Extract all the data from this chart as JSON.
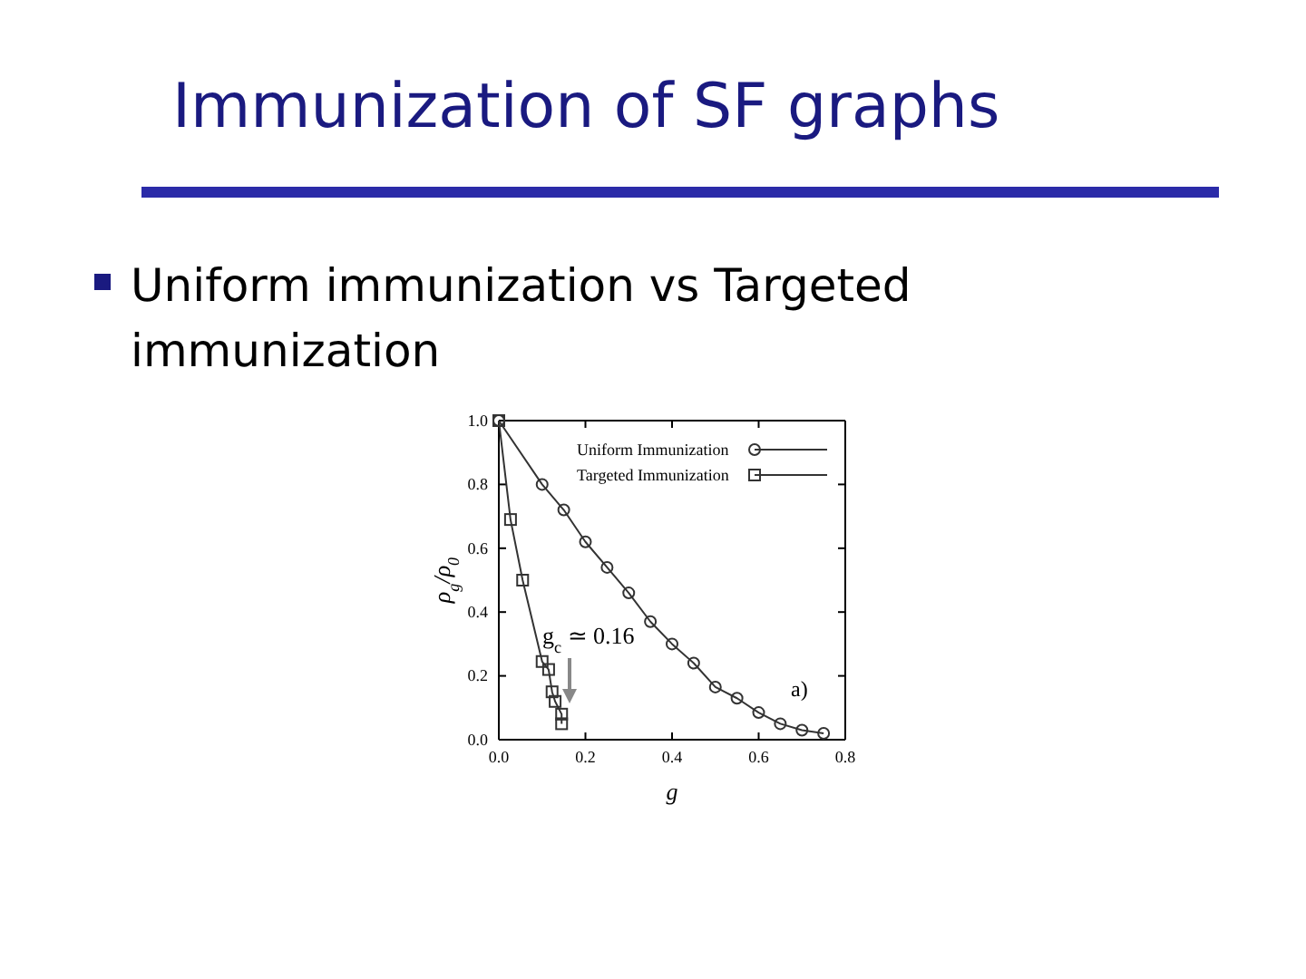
{
  "chart_data": {
    "type": "line",
    "title": "Immunization of SF graphs",
    "subtitle": "Uniform immunization vs Targeted immunization",
    "xlabel": "g",
    "ylabel": "ρ$_{g}$/ρ$_{0}$",
    "annotations": [
      "g$_{c}$ ≃ 0.16",
      "a)"
    ],
    "xlim": [
      0,
      0.8
    ],
    "ylim": [
      0,
      1
    ],
    "xticks": [
      {
        "value": 0,
        "label": "0.0"
      },
      {
        "value": 0.2,
        "label": "0.2"
      },
      {
        "value": 0.4,
        "label": "0.4"
      },
      {
        "value": 0.6,
        "label": "0.6"
      },
      {
        "value": 0.8,
        "label": "0.8"
      }
    ],
    "yticks": [
      {
        "value": 0,
        "label": "0.0"
      },
      {
        "value": 0.2,
        "label": "0.2"
      },
      {
        "value": 0.4,
        "label": "0.4"
      },
      {
        "value": 0.6,
        "label": "0.6"
      },
      {
        "value": 0.8,
        "label": "0.8"
      },
      {
        "value": 1,
        "label": "1.0"
      }
    ],
    "grid": false,
    "legend": "top right",
    "series": [
      {
        "name": "Uniform Immunization",
        "color": "#333333",
        "marker": "circle",
        "x": [
          0,
          0.1,
          0.15,
          0.2,
          0.25,
          0.3,
          0.35,
          0.4,
          0.45,
          0.5,
          0.55,
          0.6,
          0.65,
          0.7,
          0.75
        ],
        "values": [
          1.0,
          0.8,
          0.72,
          0.62,
          0.54,
          0.46,
          0.37,
          0.3,
          0.24,
          0.165,
          0.13,
          0.085,
          0.05,
          0.03,
          0.02
        ]
      },
      {
        "name": "Targeted Immunization",
        "color": "#333333",
        "marker": "square",
        "x": [
          0,
          0.027,
          0.055,
          0.1,
          0.115,
          0.123,
          0.13,
          0.145,
          0.145
        ],
        "values": [
          1.0,
          0.69,
          0.5,
          0.245,
          0.22,
          0.15,
          0.12,
          0.08,
          0.05
        ]
      }
    ]
  }
}
